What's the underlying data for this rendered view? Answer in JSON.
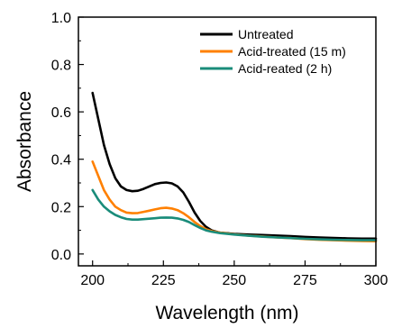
{
  "chart_data": {
    "type": "line",
    "title": "",
    "xlabel": "Wavelength (nm)",
    "ylabel": "Absorbance",
    "xlim": [
      195,
      300
    ],
    "ylim": [
      -0.05,
      1.0
    ],
    "x_ticks": [
      200,
      225,
      250,
      275,
      300
    ],
    "y_ticks": [
      0.0,
      0.2,
      0.4,
      0.6,
      0.8,
      1.0
    ],
    "x_tick_labels": [
      "200",
      "225",
      "250",
      "275",
      "300"
    ],
    "y_tick_labels": [
      "0.0",
      "0.2",
      "0.4",
      "0.6",
      "0.8",
      "1.0"
    ],
    "grid": false,
    "legend_position": "top-right",
    "series": [
      {
        "name": "Untreated",
        "color": "#000000",
        "x": [
          200,
          202,
          204,
          206,
          208,
          210,
          212,
          214,
          216,
          218,
          220,
          222,
          224,
          226,
          228,
          230,
          232,
          234,
          236,
          238,
          240,
          242,
          245,
          250,
          255,
          260,
          265,
          270,
          275,
          280,
          285,
          290,
          295,
          300
        ],
        "y": [
          0.68,
          0.57,
          0.46,
          0.38,
          0.32,
          0.285,
          0.27,
          0.265,
          0.267,
          0.275,
          0.285,
          0.295,
          0.3,
          0.302,
          0.298,
          0.285,
          0.26,
          0.22,
          0.175,
          0.14,
          0.115,
          0.1,
          0.09,
          0.085,
          0.082,
          0.08,
          0.078,
          0.075,
          0.072,
          0.07,
          0.068,
          0.066,
          0.065,
          0.065
        ]
      },
      {
        "name": "Acid-treated (15 m)",
        "color": "#ff8000",
        "x": [
          200,
          202,
          204,
          206,
          208,
          210,
          212,
          214,
          216,
          218,
          220,
          222,
          224,
          226,
          228,
          230,
          232,
          234,
          236,
          238,
          240,
          242,
          245,
          250,
          255,
          260,
          265,
          270,
          275,
          280,
          285,
          290,
          295,
          300
        ],
        "y": [
          0.39,
          0.33,
          0.27,
          0.23,
          0.2,
          0.185,
          0.175,
          0.172,
          0.173,
          0.178,
          0.183,
          0.188,
          0.193,
          0.195,
          0.192,
          0.185,
          0.172,
          0.155,
          0.135,
          0.118,
          0.105,
          0.097,
          0.09,
          0.083,
          0.078,
          0.074,
          0.07,
          0.067,
          0.063,
          0.06,
          0.058,
          0.056,
          0.055,
          0.054
        ]
      },
      {
        "name": "Acid-reated (2 h)",
        "color": "#1a8c7a",
        "x": [
          200,
          202,
          204,
          206,
          208,
          210,
          212,
          214,
          216,
          218,
          220,
          222,
          224,
          226,
          228,
          230,
          232,
          234,
          236,
          238,
          240,
          242,
          245,
          250,
          255,
          260,
          265,
          270,
          275,
          280,
          285,
          290,
          295,
          300
        ],
        "y": [
          0.27,
          0.23,
          0.2,
          0.18,
          0.165,
          0.155,
          0.148,
          0.145,
          0.145,
          0.147,
          0.149,
          0.151,
          0.153,
          0.154,
          0.153,
          0.15,
          0.144,
          0.135,
          0.122,
          0.11,
          0.1,
          0.094,
          0.088,
          0.082,
          0.077,
          0.073,
          0.07,
          0.067,
          0.064,
          0.062,
          0.06,
          0.059,
          0.058,
          0.058
        ]
      }
    ]
  }
}
